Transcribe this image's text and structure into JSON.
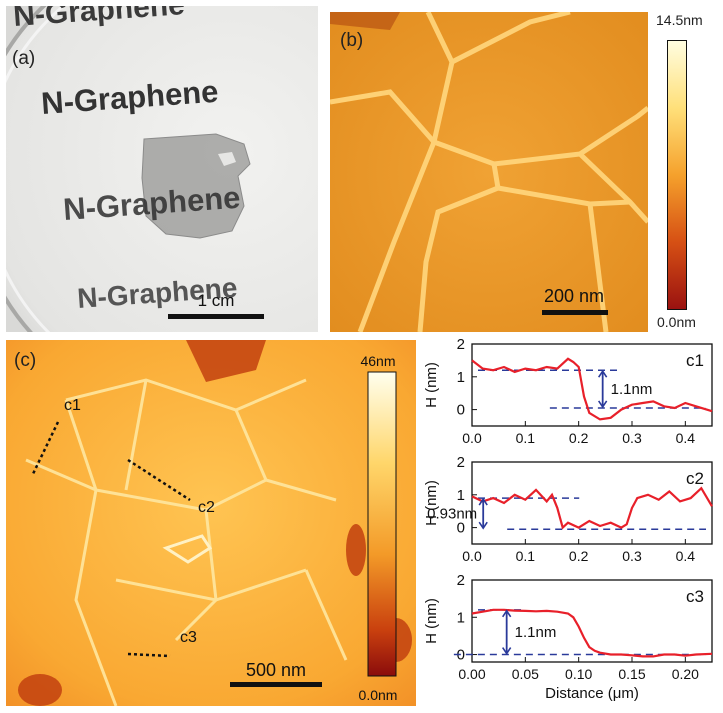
{
  "panel_a": {
    "label": "(a)",
    "sheet_text": [
      "N-Graphene",
      "N-Graphene",
      "N-Graphene",
      "N-Graphene"
    ],
    "scale_bar": "1 cm"
  },
  "panel_b": {
    "label": "(b)",
    "scale_bar": "200 nm",
    "colorbar_max": "14.5nm",
    "colorbar_min": "0.0nm"
  },
  "panel_c": {
    "label": "(c)",
    "scale_bar": "500 nm",
    "colorbar_max": "46nm",
    "colorbar_min": "0.0nm",
    "line_labels": [
      "c1",
      "c2",
      "c3"
    ]
  },
  "colors": {
    "profile_line": "#e8202a",
    "guide_line": "#2a3a9a",
    "afm_light": "#ffd27a",
    "afm_dark": "#b03010"
  },
  "chart_data": [
    {
      "type": "line",
      "label": "c1",
      "xlabel": "",
      "ylabel": "H (nm)",
      "xlim": [
        0.0,
        0.45
      ],
      "ylim": [
        -0.5,
        2
      ],
      "xticks": [
        "0.0",
        "0.1",
        "0.2",
        "0.3",
        "0.4"
      ],
      "yticks": [
        "0",
        "1",
        "2"
      ],
      "annotation": "1.1nm",
      "step_levels": [
        1.2,
        0.05
      ],
      "series": [
        {
          "x": [
            0.0,
            0.02,
            0.04,
            0.06,
            0.08,
            0.1,
            0.12,
            0.14,
            0.16,
            0.18,
            0.19,
            0.2,
            0.21,
            0.22,
            0.24,
            0.26,
            0.28,
            0.3,
            0.32,
            0.34,
            0.36,
            0.38,
            0.4,
            0.42,
            0.44,
            0.45
          ],
          "values": [
            1.5,
            1.25,
            1.2,
            1.3,
            1.15,
            1.25,
            1.2,
            1.3,
            1.25,
            1.55,
            1.45,
            1.3,
            0.4,
            -0.1,
            -0.3,
            -0.25,
            0.0,
            0.15,
            0.2,
            0.25,
            0.1,
            0.05,
            0.2,
            0.1,
            0.0,
            -0.05
          ]
        }
      ]
    },
    {
      "type": "line",
      "label": "c2",
      "xlabel": "",
      "ylabel": "H (nm)",
      "xlim": [
        0.0,
        0.45
      ],
      "ylim": [
        -0.5,
        2
      ],
      "xticks": [
        "0.0",
        "0.1",
        "0.2",
        "0.3",
        "0.4"
      ],
      "yticks": [
        "0",
        "1",
        "2"
      ],
      "annotation": "0.93nm",
      "step_levels": [
        0.9,
        -0.05
      ],
      "series": [
        {
          "x": [
            0.0,
            0.02,
            0.04,
            0.06,
            0.08,
            0.1,
            0.12,
            0.14,
            0.15,
            0.16,
            0.17,
            0.18,
            0.2,
            0.22,
            0.24,
            0.26,
            0.28,
            0.29,
            0.3,
            0.31,
            0.33,
            0.35,
            0.37,
            0.39,
            0.41,
            0.43,
            0.45
          ],
          "values": [
            0.95,
            0.8,
            0.9,
            0.75,
            1.0,
            0.85,
            1.15,
            0.8,
            1.0,
            0.6,
            0.0,
            0.15,
            0.0,
            0.2,
            0.05,
            0.15,
            0.0,
            0.1,
            0.6,
            0.9,
            1.0,
            0.85,
            1.1,
            0.8,
            0.9,
            1.2,
            0.65
          ]
        }
      ]
    },
    {
      "type": "line",
      "label": "c3",
      "xlabel": "Distance (μm)",
      "ylabel": "H (nm)",
      "xlim": [
        0.0,
        0.225
      ],
      "ylim": [
        -0.2,
        2
      ],
      "xticks": [
        "0.00",
        "0.05",
        "0.10",
        "0.15",
        "0.20"
      ],
      "yticks": [
        "0",
        "1",
        "2"
      ],
      "annotation": "1.1nm",
      "step_levels": [
        1.2,
        0.0
      ],
      "series": [
        {
          "x": [
            0.0,
            0.01,
            0.02,
            0.03,
            0.04,
            0.05,
            0.06,
            0.07,
            0.08,
            0.09,
            0.095,
            0.1,
            0.105,
            0.11,
            0.115,
            0.12,
            0.13,
            0.14,
            0.15,
            0.16,
            0.17,
            0.18,
            0.19,
            0.2,
            0.21,
            0.225
          ],
          "values": [
            1.1,
            1.15,
            1.2,
            1.2,
            1.18,
            1.17,
            1.16,
            1.17,
            1.15,
            1.1,
            1.0,
            0.75,
            0.45,
            0.2,
            0.1,
            0.05,
            0.0,
            0.0,
            -0.02,
            -0.05,
            -0.05,
            0.0,
            0.0,
            -0.03,
            0.0,
            0.02
          ]
        }
      ]
    }
  ]
}
